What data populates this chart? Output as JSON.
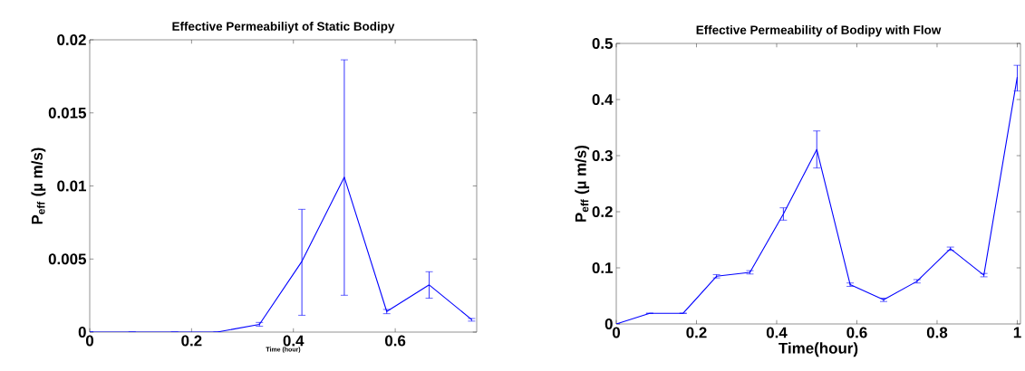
{
  "chart_data": [
    {
      "type": "line",
      "title": "Effective Permeabiliyt of Static Bodipy",
      "xlabel": "Time (hour)",
      "ylabel": "P$_{eff}$ (µ m/s)",
      "x": [
        0,
        0.0833,
        0.1667,
        0.25,
        0.3333,
        0.4167,
        0.5,
        0.5833,
        0.6667,
        0.75
      ],
      "series": [
        {
          "color": "#0000ff",
          "values": [
            0,
            0,
            0,
            0,
            0.00053,
            0.00484,
            0.0106,
            0.00141,
            0.00323,
            0.00086
          ],
          "errors": [
            null,
            null,
            null,
            null,
            [
              0.0004,
              0.00066
            ],
            [
              0.00115,
              0.0084
            ],
            [
              0.00252,
              0.01863
            ],
            [
              0.00126,
              0.00155
            ],
            [
              0.00232,
              0.00413
            ],
            [
              0.00075,
              0.00093
            ]
          ]
        }
      ],
      "xlim": [
        0,
        0.76
      ],
      "ylim": [
        0,
        0.02
      ],
      "xticks": [
        0,
        0.2,
        0.4,
        0.6
      ],
      "yticks": [
        0,
        0.005,
        0.01,
        0.015,
        0.02
      ]
    },
    {
      "type": "line",
      "title": "Effective Permeability of Bodipy with Flow",
      "xlabel": "Time(hour)",
      "ylabel": "P$_{eff}$ (µ m/s)",
      "x": [
        0,
        0.0833,
        0.1667,
        0.25,
        0.3333,
        0.4167,
        0.5,
        0.5833,
        0.6667,
        0.75,
        0.8333,
        0.9167,
        1.0
      ],
      "series": [
        {
          "color": "#0000ff",
          "values": [
            0,
            0.019,
            0.019,
            0.085,
            0.092,
            0.196,
            0.311,
            0.07,
            0.043,
            0.076,
            0.134,
            0.087,
            0.44
          ],
          "errors": [
            null,
            null,
            null,
            [
              0.082,
              0.088
            ],
            [
              0.089,
              0.095
            ],
            [
              0.185,
              0.207
            ],
            [
              0.278,
              0.344
            ],
            [
              0.067,
              0.073
            ],
            [
              0.04,
              0.046
            ],
            [
              0.073,
              0.079
            ],
            [
              0.131,
              0.137
            ],
            [
              0.084,
              0.09
            ],
            [
              0.415,
              0.461
            ]
          ]
        }
      ],
      "xlim": [
        0,
        1.008
      ],
      "ylim": [
        0,
        0.5
      ],
      "xticks": [
        0,
        0.2,
        0.4,
        0.6,
        0.8,
        1
      ],
      "yticks": [
        0,
        0.1,
        0.2,
        0.3,
        0.4,
        0.5
      ]
    }
  ]
}
